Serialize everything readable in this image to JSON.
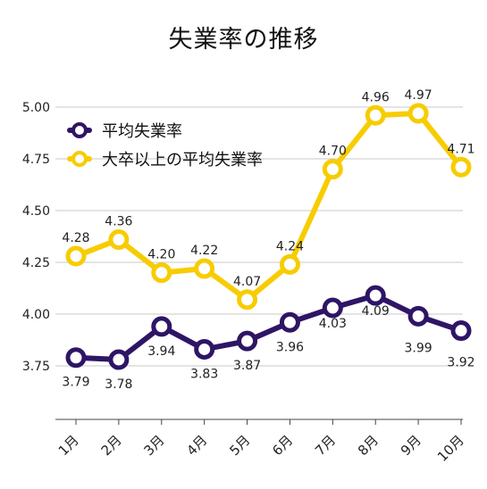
{
  "chart_data": {
    "type": "line",
    "title": "失業率の推移",
    "categories": [
      "1月",
      "2月",
      "3月",
      "4月",
      "5月",
      "6月",
      "7月",
      "8月",
      "9月",
      "10月"
    ],
    "ylim": [
      3.5,
      5.15
    ],
    "yticks": [
      "3.75",
      "4.00",
      "4.25",
      "4.50",
      "4.75",
      "5.00"
    ],
    "grid": true,
    "legend_position": "top-left",
    "series": [
      {
        "name": "平均失業率",
        "color": "#2e1566",
        "values": [
          3.79,
          3.78,
          3.94,
          3.83,
          3.87,
          3.96,
          4.03,
          4.09,
          3.99,
          3.92
        ],
        "labels": [
          "3.79",
          "3.78",
          "3.94",
          "3.83",
          "3.87",
          "3.96",
          "4.03",
          "4.09",
          "3.99",
          "3.92"
        ]
      },
      {
        "name": "大卒以上の平均失業率",
        "color": "#f7cc00",
        "values": [
          4.28,
          4.36,
          4.2,
          4.22,
          4.07,
          4.24,
          4.7,
          4.96,
          4.97,
          4.71
        ],
        "labels": [
          "4.28",
          "4.36",
          "4.20",
          "4.22",
          "4.07",
          "4.24",
          "4.70",
          "4.96",
          "4.97",
          "4.71"
        ]
      }
    ]
  }
}
